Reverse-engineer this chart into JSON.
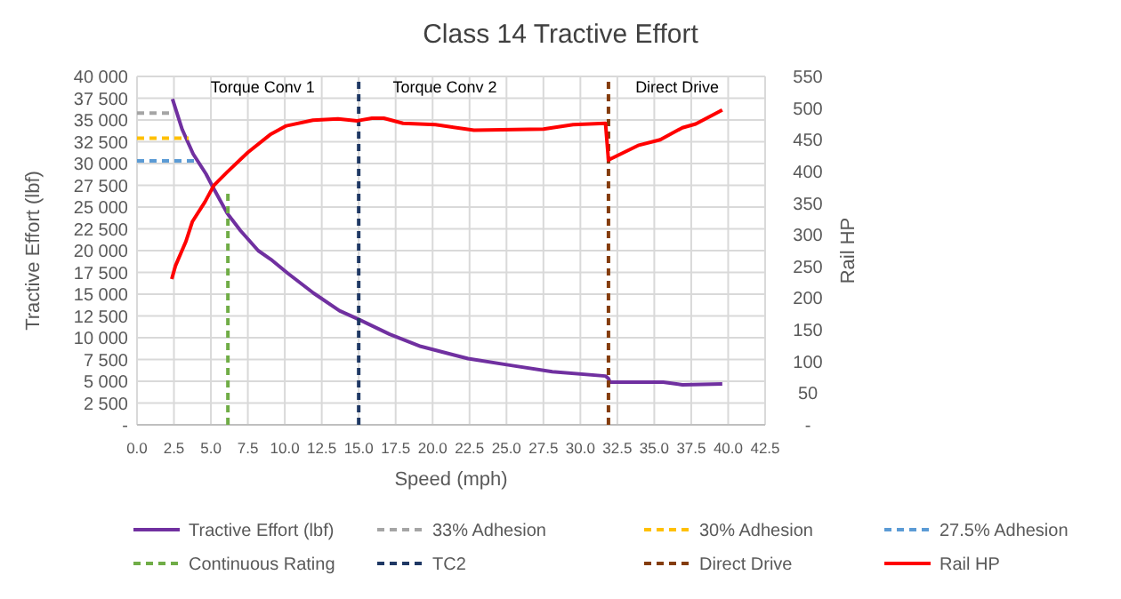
{
  "chart_data": {
    "type": "line",
    "title": "Class 14 Tractive Effort",
    "xlabel": "Speed (mph)",
    "ylabel": "Tractive Effort (lbf)",
    "y2label": "Rail HP",
    "xlim": [
      0,
      42.5
    ],
    "xticks": [
      {
        "value": 0,
        "label": "0.0"
      },
      {
        "value": 2.5,
        "label": "2.5"
      },
      {
        "value": 5,
        "label": "5.0"
      },
      {
        "value": 7.5,
        "label": "7.5"
      },
      {
        "value": 10,
        "label": "10.0"
      },
      {
        "value": 12.5,
        "label": "12.5"
      },
      {
        "value": 15,
        "label": "15.0"
      },
      {
        "value": 17.5,
        "label": "17.5"
      },
      {
        "value": 20,
        "label": "20.0"
      },
      {
        "value": 22.5,
        "label": "22.5"
      },
      {
        "value": 25,
        "label": "25.0"
      },
      {
        "value": 27.5,
        "label": "27.5"
      },
      {
        "value": 30,
        "label": "30.0"
      },
      {
        "value": 32.5,
        "label": "32.5"
      },
      {
        "value": 35,
        "label": "35.0"
      },
      {
        "value": 37.5,
        "label": "37.5"
      },
      {
        "value": 40,
        "label": "40.0"
      },
      {
        "value": 42.5,
        "label": "42.5"
      }
    ],
    "ylim": [
      0,
      40000
    ],
    "yticks": [
      {
        "value": 0,
        "label": "-"
      },
      {
        "value": 2500,
        "label": "2 500"
      },
      {
        "value": 5000,
        "label": "5 000"
      },
      {
        "value": 7500,
        "label": "7 500"
      },
      {
        "value": 10000,
        "label": "10 000"
      },
      {
        "value": 12500,
        "label": "12 500"
      },
      {
        "value": 15000,
        "label": "15 000"
      },
      {
        "value": 17500,
        "label": "17 500"
      },
      {
        "value": 20000,
        "label": "20 000"
      },
      {
        "value": 22500,
        "label": "22 500"
      },
      {
        "value": 25000,
        "label": "25 000"
      },
      {
        "value": 27500,
        "label": "27 500"
      },
      {
        "value": 30000,
        "label": "30 000"
      },
      {
        "value": 32500,
        "label": "32 500"
      },
      {
        "value": 35000,
        "label": "35 000"
      },
      {
        "value": 37500,
        "label": "37 500"
      },
      {
        "value": 40000,
        "label": "40 000"
      }
    ],
    "y2lim": [
      0,
      550
    ],
    "y2ticks": [
      {
        "value": 0,
        "label": "-"
      },
      50,
      100,
      150,
      200,
      250,
      300,
      350,
      400,
      450,
      500,
      550
    ],
    "grid": true,
    "legend": "bottom",
    "marker": "none",
    "annotations": [
      "Torque Conv 1",
      "Torque Conv 2",
      "Direct Drive"
    ],
    "series": [
      {
        "name": "Tractive Effort (lbf)",
        "color": "#7030a0",
        "line_style": "solid",
        "x": [
          2.4,
          3.06,
          3.8,
          4.67,
          5.1,
          6.1,
          7.0,
          8.2,
          9.05,
          10.2,
          11.96,
          13.7,
          15.0,
          17.1,
          19.2,
          22.4,
          25.4,
          28.1,
          31.7,
          31.9,
          32.0,
          35.6,
          36.9,
          39.6
        ],
        "values": [
          37400,
          33900,
          31100,
          28800,
          27400,
          24300,
          22300,
          20000,
          19000,
          17400,
          15100,
          13100,
          12100,
          10400,
          9000,
          7600,
          6800,
          6100,
          5600,
          5300,
          4900,
          4900,
          4600,
          4700
        ]
      },
      {
        "name": "33% Adhesion",
        "color": "#a5a5a5",
        "line_style": "dashed",
        "x": [
          0,
          2.4
        ],
        "values": [
          35800,
          35800
        ]
      },
      {
        "name": "30% Adhesion",
        "color": "#ffc000",
        "line_style": "dashed",
        "x": [
          0,
          3.5
        ],
        "values": [
          32900,
          32900
        ]
      },
      {
        "name": "27.5% Adhesion",
        "color": "#5b9bd5",
        "line_style": "dashed",
        "x": [
          0,
          4.2
        ],
        "values": [
          30300,
          30300
        ]
      },
      {
        "name": "Continuous Rating",
        "color": "#70ad47",
        "line_style": "dashed",
        "x": [
          6.15,
          6.15
        ],
        "values": [
          0,
          27000
        ]
      },
      {
        "name": "TC2",
        "color": "#1f3864",
        "line_style": "dashed",
        "x": [
          15,
          15
        ],
        "values": [
          0,
          40000
        ]
      },
      {
        "name": "Direct Drive",
        "color": "#843c0c",
        "line_style": "dashed",
        "x": [
          31.9,
          31.9
        ],
        "values": [
          0,
          40000
        ]
      },
      {
        "name": "Rail HP",
        "color": "#ff0000",
        "line_style": "solid",
        "axis": "y2",
        "x": [
          2.35,
          2.6,
          3.3,
          3.75,
          4.6,
          5.2,
          6.1,
          7.5,
          9.0,
          10.1,
          11.9,
          13.6,
          14.9,
          15.9,
          16.7,
          18.0,
          20.2,
          22.8,
          27.5,
          29.5,
          31.7,
          31.9,
          33.9,
          35.4,
          36.9,
          37.8,
          39.6
        ],
        "values": [
          230,
          251,
          289,
          321,
          352,
          378,
          399,
          430,
          458,
          472,
          481,
          483,
          480,
          484,
          484,
          476,
          474,
          465,
          467,
          474,
          476,
          418,
          441,
          450,
          469,
          475,
          497
        ]
      }
    ]
  }
}
